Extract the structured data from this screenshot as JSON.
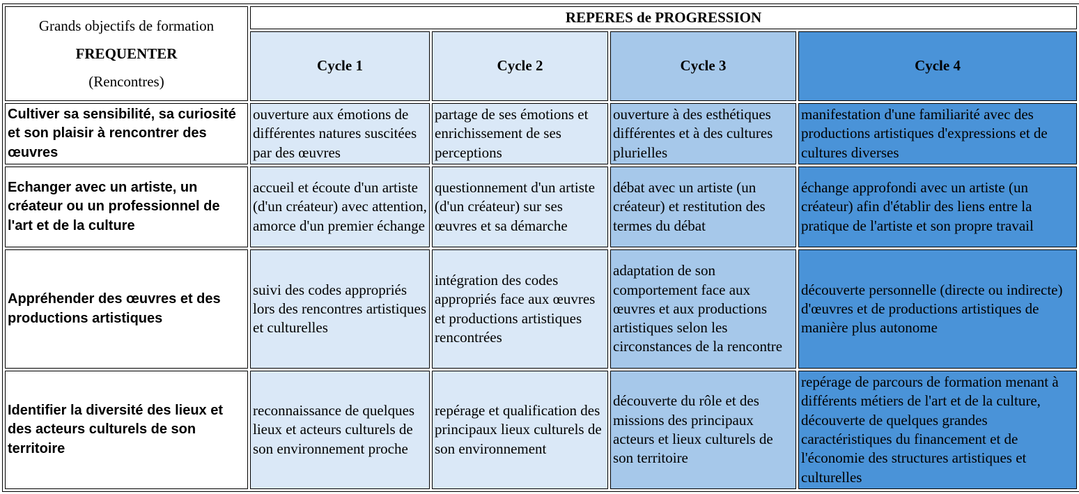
{
  "header": {
    "objectives_title": "Grands objectifs de formation",
    "objectives_domain": "FREQUENTER",
    "objectives_sub": "(Rencontres)",
    "progression_title": "REPERES de PROGRESSION",
    "cycles": [
      "Cycle 1",
      "Cycle 2",
      "Cycle 3",
      "Cycle 4"
    ]
  },
  "colors": {
    "cycle1": "#dae8f7",
    "cycle2": "#dae8f7",
    "cycle3": "#a6c8ea",
    "cycle4": "#4a93d8"
  },
  "rows": [
    {
      "objective": "Cultiver sa sensibilité, sa curiosité et son plaisir à rencontrer des œuvres",
      "cells": [
        "ouverture aux émotions de différentes natures suscitées par des œuvres",
        "partage de ses émotions et enrichissement de ses perceptions",
        "ouverture à des esthétiques différentes et à des cultures plurielles",
        "manifestation d'une familiarité avec des productions artistiques d'expressions et de cultures diverses"
      ]
    },
    {
      "objective": "Echanger avec un artiste, un créateur ou un professionnel de l'art et de la culture",
      "cells": [
        "accueil et écoute d'un artiste (d'un créateur) avec attention, amorce d'un premier échange",
        "questionnement d'un artiste (d'un créateur) sur ses œuvres et sa démarche",
        "débat avec un artiste (un créateur) et restitution des termes du débat",
        "échange approfondi avec un artiste (un créateur) afin d'établir des liens entre la pratique de l'artiste et son propre travail"
      ]
    },
    {
      "objective": "Appréhender des œuvres et des productions artistiques",
      "cells": [
        "suivi des codes appropriés lors des rencontres artistiques et culturelles",
        "intégration des codes appropriés face aux œuvres et productions artistiques rencontrées",
        "adaptation de son comportement face aux œuvres et aux productions artistiques selon les circonstances de la rencontre",
        "découverte personnelle (directe ou indirecte) d'œuvres et de productions artistiques de manière plus autonome"
      ]
    },
    {
      "objective": "Identifier la diversité des lieux et des acteurs culturels de son territoire",
      "cells": [
        "reconnaissance de quelques lieux et acteurs culturels de son environnement proche",
        "repérage et qualification des principaux lieux culturels de son environnement",
        "découverte du rôle et des missions des principaux acteurs et lieux culturels de son territoire",
        "repérage de parcours de formation menant à différents métiers de l'art et de la culture, découverte de quelques grandes caractéristiques du financement et de l'économie des structures artistiques et culturelles"
      ]
    }
  ]
}
